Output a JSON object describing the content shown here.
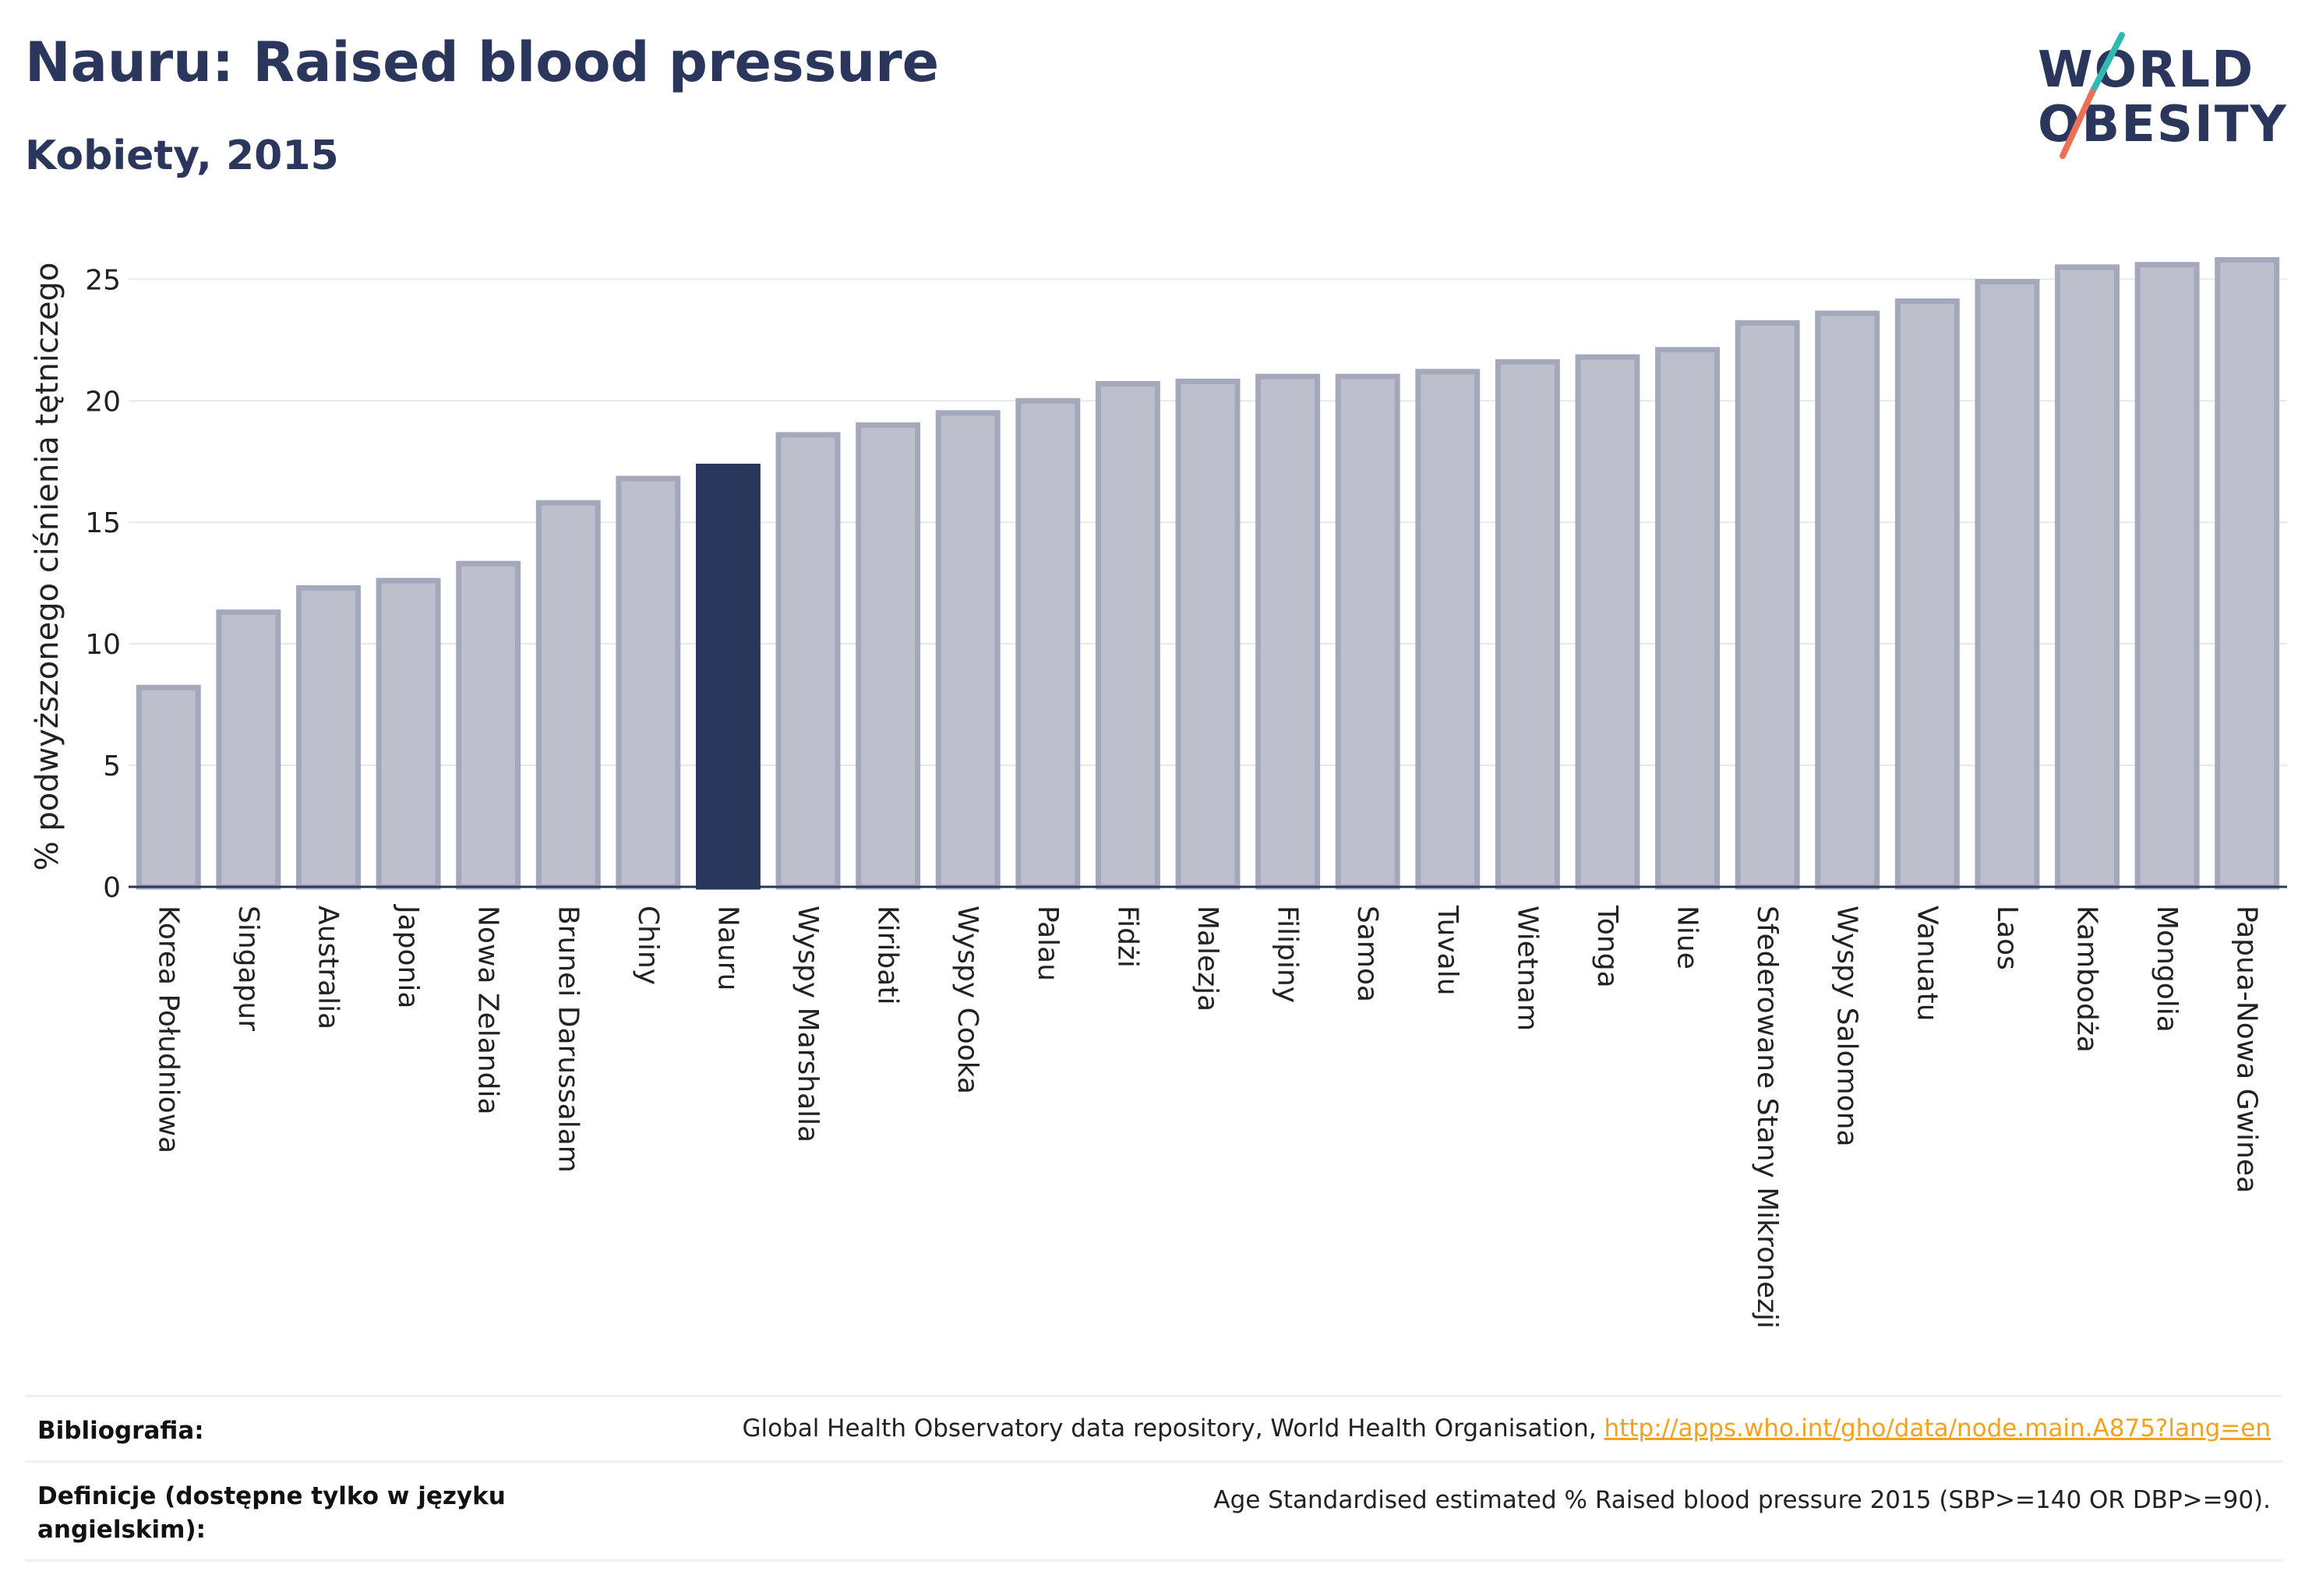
{
  "header": {
    "title": "Nauru: Raised blood pressure",
    "subtitle": "Kobiety, 2015"
  },
  "logo": {
    "line1": "WORLD",
    "line2": "OBESITY",
    "slash_colors": [
      "#30b9b0",
      "#ee6f57"
    ]
  },
  "colors": {
    "bar_fill": "#bdc0cc",
    "bar_stroke": "#a3a9bb",
    "highlight": "#2b365c",
    "text": "#2b365c",
    "link": "#f4a21b"
  },
  "chart_data": {
    "type": "bar",
    "ylabel": "% podwyższonego ciśnienia tętniczego",
    "ylim": [
      0,
      27
    ],
    "yticks": [
      0,
      5,
      10,
      15,
      20,
      25
    ],
    "grid": true,
    "highlight": "Nauru",
    "categories": [
      "Korea Południowa",
      "Singapur",
      "Australia",
      "Japonia",
      "Nowa Zelandia",
      "Brunei Darussalam",
      "Chiny",
      "Nauru",
      "Wyspy Marshalla",
      "Kiribati",
      "Wyspy Cooka",
      "Palau",
      "Fidżi",
      "Malezja",
      "Filipiny",
      "Samoa",
      "Tuvalu",
      "Wietnam",
      "Tonga",
      "Niue",
      "Sfederowane Stany Mikronezji",
      "Wyspy Salomona",
      "Vanuatu",
      "Laos",
      "Kambodża",
      "Mongolia",
      "Papua-Nowa Gwinea"
    ],
    "values": [
      8.2,
      11.3,
      12.3,
      12.6,
      13.3,
      15.8,
      16.8,
      17.3,
      18.6,
      19.0,
      19.5,
      20.0,
      20.7,
      20.8,
      21.0,
      21.0,
      21.2,
      21.6,
      21.8,
      22.1,
      23.2,
      23.6,
      24.1,
      24.9,
      25.5,
      25.6,
      25.8
    ]
  },
  "footer": {
    "bibliography_label": "Bibliografia:",
    "bibliography_text": "Global Health Observatory data repository, World Health Organisation, ",
    "bibliography_link": "http://apps.who.int/gho/data/node.main.A875?lang=en",
    "definitions_label": "Definicje (dostępne tylko w języku angielskim):",
    "definitions_text": "Age Standardised estimated % Raised blood pressure 2015 (SBP>=140 OR DBP>=90)."
  }
}
